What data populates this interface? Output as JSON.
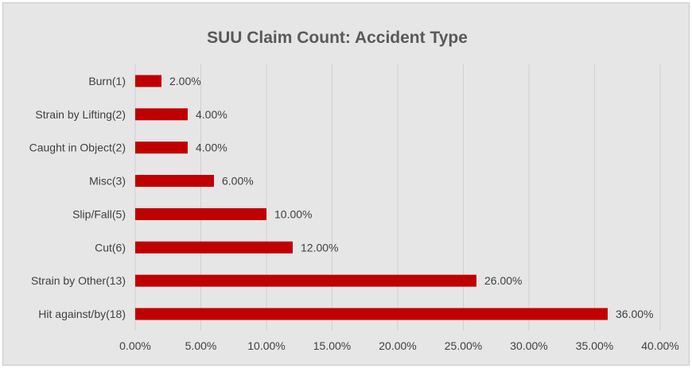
{
  "chart_data": {
    "type": "bar",
    "orientation": "horizontal",
    "title": "SUU Claim Count: Accident Type",
    "xlabel": "",
    "ylabel": "",
    "categories": [
      "Burn(1)",
      "Strain by Lifting(2)",
      "Caught in Object(2)",
      "Misc(3)",
      "Slip/Fall(5)",
      "Cut(6)",
      "Strain by Other(13)",
      "Hit against/by(18)"
    ],
    "values": [
      2.0,
      4.0,
      4.0,
      6.0,
      10.0,
      12.0,
      26.0,
      36.0
    ],
    "data_labels": [
      "2.00%",
      "4.00%",
      "4.00%",
      "6.00%",
      "10.00%",
      "12.00%",
      "26.00%",
      "36.00%"
    ],
    "xlim": [
      0,
      40
    ],
    "x_ticks": [
      0,
      5,
      10,
      15,
      20,
      25,
      30,
      35,
      40
    ],
    "x_tick_labels": [
      "0.00%",
      "5.00%",
      "10.00%",
      "15.00%",
      "20.00%",
      "25.00%",
      "30.00%",
      "35.00%",
      "40.00%"
    ],
    "grid": "vertical",
    "legend": "none",
    "bar_color": "#c00000",
    "grid_color": "#d0d0d0"
  }
}
